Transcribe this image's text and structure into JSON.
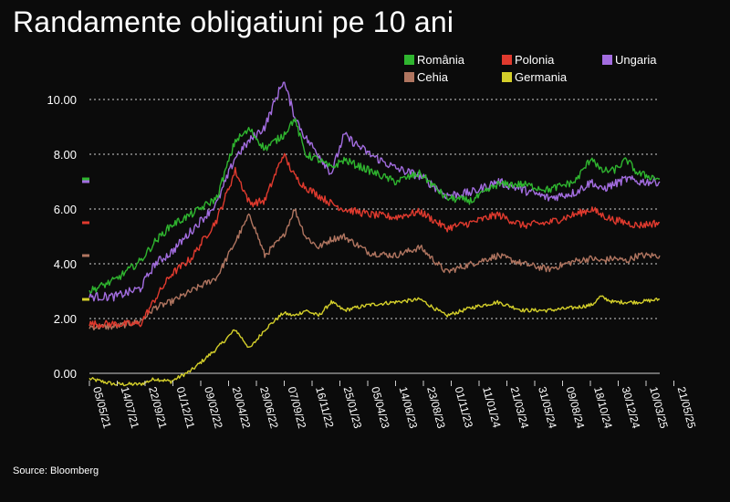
{
  "title": "Randamente obligatiuni pe 10 ani",
  "source": "Source: Bloomberg",
  "chart_data": {
    "type": "line",
    "title": "Randamente obligatiuni pe 10 ani",
    "xlabel": "",
    "ylabel": "",
    "ylim": [
      -0.5,
      11.0
    ],
    "yticks": [
      0,
      2,
      4,
      6,
      8,
      10
    ],
    "ytick_labels": [
      "0.00",
      "2.00",
      "4.00",
      "6.00",
      "8.00",
      "10.00"
    ],
    "grid": true,
    "legend_position": "top-right",
    "x_start": "2021-05-05",
    "x_end": "2025-08-20",
    "x_tick_labels": [
      "05/05/21",
      "14/07/21",
      "22/09/21",
      "01/12/21",
      "09/02/22",
      "20/04/22",
      "29/06/22",
      "07/09/22",
      "16/11/22",
      "25/01/23",
      "05/04/23",
      "14/06/23",
      "23/08/23",
      "01/11/23",
      "11/01/24",
      "21/03/24",
      "31/05/24",
      "09/08/24",
      "18/10/24",
      "30/12/24",
      "10/03/25",
      "21/05/25"
    ],
    "series": [
      {
        "name": "România",
        "color": "#2fb52f",
        "x": [
          "2021-05-05",
          "2021-07-14",
          "2021-09-22",
          "2021-11-01",
          "2021-12-15",
          "2022-02-09",
          "2022-04-20",
          "2022-06-10",
          "2022-07-20",
          "2022-08-30",
          "2022-10-20",
          "2022-11-20",
          "2022-12-20",
          "2023-01-25",
          "2023-03-01",
          "2023-04-05",
          "2023-06-14",
          "2023-08-23",
          "2023-11-01",
          "2024-01-11",
          "2024-03-21",
          "2024-05-31",
          "2024-08-09",
          "2024-10-18",
          "2024-12-30",
          "2025-02-15",
          "2025-03-10",
          "2025-04-15",
          "2025-05-21",
          "2025-06-20",
          "2025-08-20"
        ],
        "values": [
          3.0,
          3.4,
          4.1,
          4.8,
          5.4,
          5.8,
          6.4,
          8.5,
          8.9,
          8.2,
          8.7,
          9.3,
          8.0,
          7.8,
          7.5,
          7.8,
          7.4,
          7.0,
          7.3,
          6.4,
          6.3,
          6.9,
          6.9,
          6.7,
          7.0,
          7.9,
          7.4,
          7.4,
          7.8,
          7.3,
          7.1
        ]
      },
      {
        "name": "Polonia",
        "color": "#e03a2e",
        "x": [
          "2021-05-05",
          "2021-07-14",
          "2021-09-22",
          "2021-11-01",
          "2021-12-15",
          "2022-02-09",
          "2022-04-20",
          "2022-06-10",
          "2022-07-20",
          "2022-08-30",
          "2022-10-20",
          "2022-11-20",
          "2022-12-20",
          "2023-01-25",
          "2023-03-01",
          "2023-04-05",
          "2023-06-14",
          "2023-08-23",
          "2023-11-01",
          "2024-01-11",
          "2024-03-21",
          "2024-05-31",
          "2024-08-09",
          "2024-10-18",
          "2024-12-30",
          "2025-02-15",
          "2025-03-10",
          "2025-04-15",
          "2025-05-21",
          "2025-06-20",
          "2025-08-20"
        ],
        "values": [
          1.8,
          1.8,
          1.8,
          2.7,
          3.6,
          4.2,
          5.6,
          7.4,
          6.2,
          6.3,
          8.0,
          7.2,
          6.8,
          6.5,
          6.2,
          6.0,
          5.8,
          5.7,
          5.9,
          5.3,
          5.5,
          5.8,
          5.4,
          5.5,
          5.8,
          6.0,
          5.8,
          5.6,
          5.5,
          5.4,
          5.5
        ]
      },
      {
        "name": "Ungaria",
        "color": "#a36de0",
        "x": [
          "2021-05-05",
          "2021-07-14",
          "2021-09-22",
          "2021-11-01",
          "2021-12-15",
          "2022-02-09",
          "2022-04-20",
          "2022-06-10",
          "2022-07-20",
          "2022-08-30",
          "2022-10-20",
          "2022-11-20",
          "2022-12-20",
          "2023-01-25",
          "2023-03-01",
          "2023-04-05",
          "2023-06-14",
          "2023-08-23",
          "2023-11-01",
          "2024-01-11",
          "2024-03-21",
          "2024-05-31",
          "2024-08-09",
          "2024-10-18",
          "2024-12-30",
          "2025-02-15",
          "2025-03-10",
          "2025-04-15",
          "2025-05-21",
          "2025-06-20",
          "2025-08-20"
        ],
        "values": [
          2.8,
          2.8,
          3.1,
          4.0,
          4.4,
          5.2,
          6.2,
          7.9,
          8.5,
          9.0,
          10.7,
          9.4,
          8.6,
          8.0,
          7.3,
          8.7,
          8.0,
          7.5,
          7.2,
          6.5,
          6.6,
          7.0,
          6.7,
          6.4,
          6.6,
          7.0,
          6.7,
          6.9,
          7.1,
          7.0,
          7.0
        ]
      },
      {
        "name": "Cehia",
        "color": "#b07560",
        "x": [
          "2021-05-05",
          "2021-07-14",
          "2021-09-22",
          "2021-11-01",
          "2021-12-15",
          "2022-02-09",
          "2022-04-20",
          "2022-06-10",
          "2022-07-20",
          "2022-08-30",
          "2022-10-20",
          "2022-11-20",
          "2022-12-20",
          "2023-01-25",
          "2023-03-01",
          "2023-04-05",
          "2023-06-14",
          "2023-08-23",
          "2023-11-01",
          "2024-01-11",
          "2024-03-21",
          "2024-05-31",
          "2024-08-09",
          "2024-10-18",
          "2024-12-30",
          "2025-02-15",
          "2025-03-10",
          "2025-04-15",
          "2025-05-21",
          "2025-06-20",
          "2025-08-20"
        ],
        "values": [
          1.7,
          1.7,
          1.9,
          2.4,
          2.6,
          3.0,
          3.5,
          4.8,
          5.8,
          4.3,
          5.0,
          6.0,
          5.0,
          4.6,
          4.9,
          5.0,
          4.4,
          4.3,
          4.6,
          3.7,
          4.0,
          4.3,
          4.0,
          3.8,
          4.1,
          4.2,
          4.1,
          4.2,
          4.1,
          4.3,
          4.3
        ]
      },
      {
        "name": "Germania",
        "color": "#d4cf2a",
        "x": [
          "2021-05-05",
          "2021-07-14",
          "2021-09-22",
          "2021-11-01",
          "2021-12-15",
          "2022-02-09",
          "2022-04-20",
          "2022-06-10",
          "2022-07-20",
          "2022-08-30",
          "2022-10-20",
          "2022-11-20",
          "2022-12-20",
          "2023-01-25",
          "2023-03-01",
          "2023-04-05",
          "2023-06-14",
          "2023-08-23",
          "2023-11-01",
          "2024-01-11",
          "2024-03-21",
          "2024-05-31",
          "2024-08-09",
          "2024-10-18",
          "2024-12-30",
          "2025-02-15",
          "2025-03-10",
          "2025-04-15",
          "2025-05-21",
          "2025-06-20",
          "2025-08-20"
        ],
        "values": [
          -0.2,
          -0.4,
          -0.4,
          -0.2,
          -0.3,
          0.1,
          0.9,
          1.6,
          0.9,
          1.6,
          2.2,
          2.1,
          2.3,
          2.1,
          2.6,
          2.3,
          2.5,
          2.6,
          2.7,
          2.1,
          2.4,
          2.6,
          2.3,
          2.3,
          2.4,
          2.5,
          2.8,
          2.6,
          2.6,
          2.6,
          2.7
        ]
      }
    ],
    "legend": [
      {
        "name": "România",
        "color": "#2fb52f"
      },
      {
        "name": "Polonia",
        "color": "#e03a2e"
      },
      {
        "name": "Ungaria",
        "color": "#a36de0"
      },
      {
        "name": "Cehia",
        "color": "#b07560"
      },
      {
        "name": "Germania",
        "color": "#d4cf2a"
      }
    ]
  }
}
